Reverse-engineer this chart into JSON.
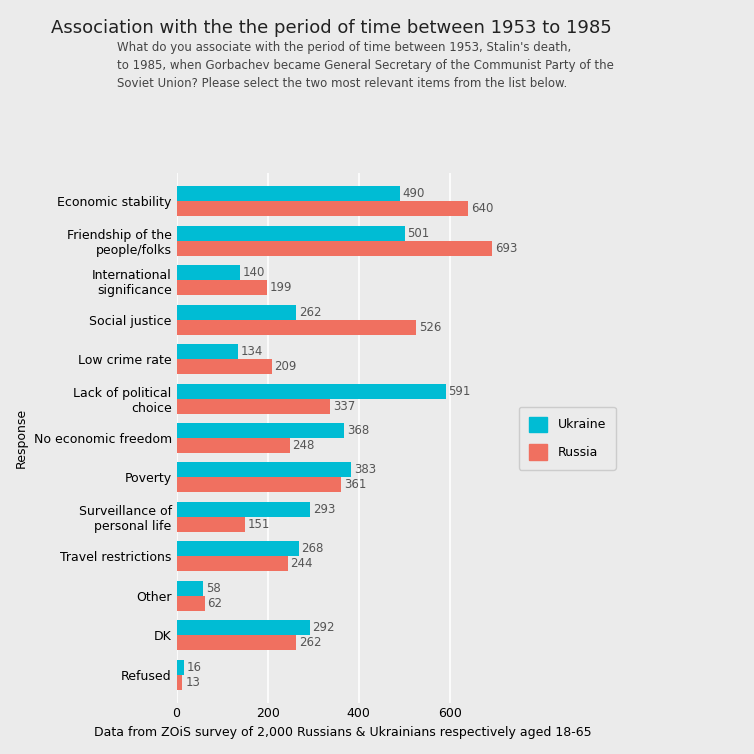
{
  "title": "Association with the the period of time between 1953 to 1985",
  "subtitle": "What do you associate with the period of time between 1953, Stalin's death,\nto 1985, when Gorbachev became General Secretary of the Communist Party of the\nSoviet Union? Please select the two most relevant items from the list below.",
  "xlabel": "Data from ZOiS survey of 2,000 Russians & Ukrainians respectively aged 18-65",
  "ylabel": "Response",
  "categories": [
    "Economic stability",
    "Friendship of the\npeople/folks",
    "International\nsignificance",
    "Social justice",
    "Low crime rate",
    "Lack of political\nchoice",
    "No economic freedom",
    "Poverty",
    "Surveillance of\npersonal life",
    "Travel restrictions",
    "Other",
    "DK",
    "Refused"
  ],
  "ukraine_values": [
    490,
    501,
    140,
    262,
    134,
    591,
    368,
    383,
    293,
    268,
    58,
    292,
    16
  ],
  "russia_values": [
    640,
    693,
    199,
    526,
    209,
    337,
    248,
    361,
    151,
    244,
    62,
    262,
    13
  ],
  "ukraine_color": "#00BCD4",
  "russia_color": "#F07060",
  "background_color": "#EBEBEB",
  "panel_color": "#EBEBEB",
  "xlim": [
    0,
    730
  ],
  "legend_ukraine": "Ukraine",
  "legend_russia": "Russia",
  "bar_height": 0.38,
  "label_fontsize": 8.5,
  "title_fontsize": 13,
  "subtitle_fontsize": 8.5,
  "axis_label_fontsize": 9,
  "tick_fontsize": 9
}
